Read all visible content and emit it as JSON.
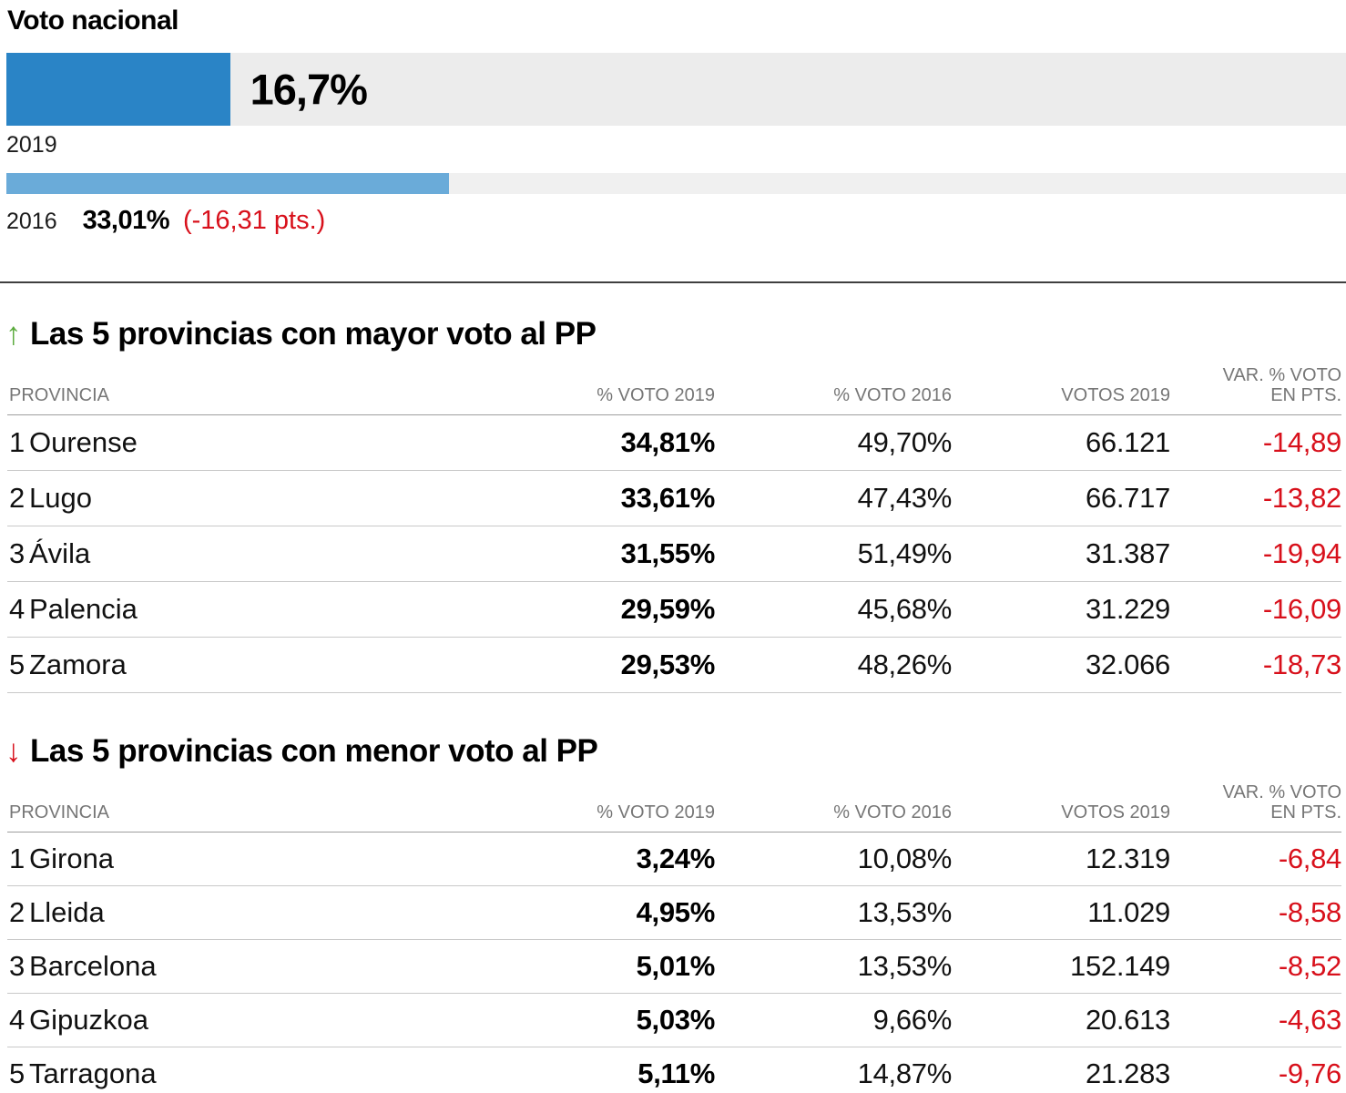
{
  "colors": {
    "bar_2019_blue": "#2a84c6",
    "bar_2016_light_blue": "#6aabd9",
    "track_gray": "#ececec",
    "negative_red": "#d8101b",
    "up_green": "#5aaa3c",
    "divider_dark": "#3f3f3f",
    "header_text_gray": "#767676",
    "row_rule_gray": "#c9c9c9"
  },
  "chart_data": [
    {
      "type": "bar",
      "orientation": "horizontal",
      "title": "Voto nacional",
      "categories": [
        "2019",
        "2016"
      ],
      "values": [
        16.7,
        33.01
      ],
      "value_labels": [
        "16,7%",
        "33,01%"
      ],
      "annotation": "(-16,31 pts.)",
      "xlim": [
        0,
        100
      ],
      "colors": [
        "#2a84c6",
        "#6aabd9"
      ],
      "grid": false,
      "legend": false
    },
    {
      "type": "table",
      "arrow_glyph": "↑",
      "arrow_direction": "up",
      "title": "Las 5 provincias con mayor voto al PP",
      "columns": [
        "PROVINCIA",
        "% VOTO 2019",
        "% VOTO 2016",
        "VOTOS 2019",
        "VAR. % VOTO\nEN PTS."
      ],
      "rows": [
        {
          "rank": "1",
          "province": "Ourense",
          "pct_2019": "34,81%",
          "pct_2016": "49,70%",
          "votos_2019": "66.121",
          "var_pts": "-14,89"
        },
        {
          "rank": "2",
          "province": "Lugo",
          "pct_2019": "33,61%",
          "pct_2016": "47,43%",
          "votos_2019": "66.717",
          "var_pts": "-13,82"
        },
        {
          "rank": "3",
          "province": "Ávila",
          "pct_2019": "31,55%",
          "pct_2016": "51,49%",
          "votos_2019": "31.387",
          "var_pts": "-19,94"
        },
        {
          "rank": "4",
          "province": "Palencia",
          "pct_2019": "29,59%",
          "pct_2016": "45,68%",
          "votos_2019": "31.229",
          "var_pts": "-16,09"
        },
        {
          "rank": "5",
          "province": "Zamora",
          "pct_2019": "29,53%",
          "pct_2016": "48,26%",
          "votos_2019": "32.066",
          "var_pts": "-18,73"
        }
      ]
    },
    {
      "type": "table",
      "arrow_glyph": "↓",
      "arrow_direction": "down",
      "title": "Las 5 provincias con menor voto al PP",
      "columns": [
        "PROVINCIA",
        "% VOTO 2019",
        "% VOTO 2016",
        "VOTOS 2019",
        "VAR. % VOTO\nEN PTS."
      ],
      "rows": [
        {
          "rank": "1",
          "province": "Girona",
          "pct_2019": "3,24%",
          "pct_2016": "10,08%",
          "votos_2019": "12.319",
          "var_pts": "-6,84"
        },
        {
          "rank": "2",
          "province": "Lleida",
          "pct_2019": "4,95%",
          "pct_2016": "13,53%",
          "votos_2019": "11.029",
          "var_pts": "-8,58"
        },
        {
          "rank": "3",
          "province": "Barcelona",
          "pct_2019": "5,01%",
          "pct_2016": "13,53%",
          "votos_2019": "152.149",
          "var_pts": "-8,52"
        },
        {
          "rank": "4",
          "province": "Gipuzkoa",
          "pct_2019": "5,03%",
          "pct_2016": "9,66%",
          "votos_2019": "20.613",
          "var_pts": "-4,63"
        },
        {
          "rank": "5",
          "province": "Tarragona",
          "pct_2019": "5,11%",
          "pct_2016": "14,87%",
          "votos_2019": "21.283",
          "var_pts": "-9,76"
        }
      ]
    }
  ]
}
